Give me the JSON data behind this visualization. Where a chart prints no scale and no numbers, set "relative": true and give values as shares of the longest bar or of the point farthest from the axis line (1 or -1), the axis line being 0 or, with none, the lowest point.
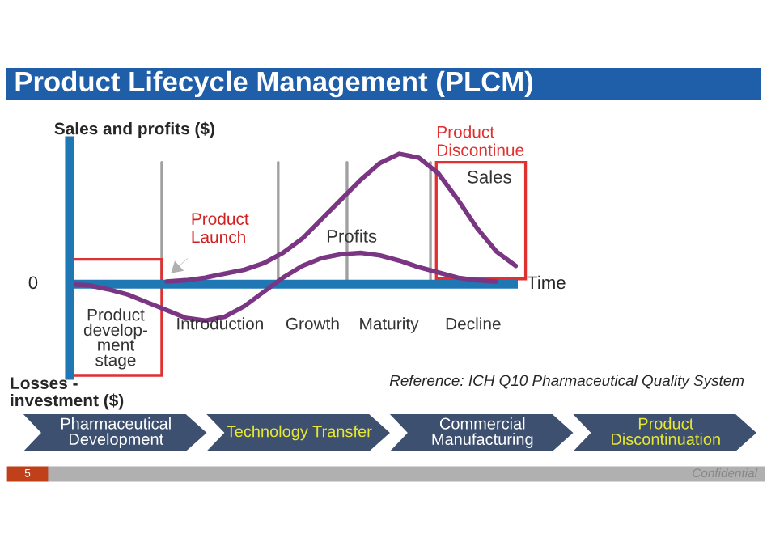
{
  "chart_data": {
    "type": "line",
    "relative": true,
    "title": "Product Lifecycle Management (PLCM)",
    "ylabel": "Sales and profits ($)",
    "xlabel": "Time",
    "categories": [
      null,
      null,
      null,
      null,
      null,
      null,
      null,
      null,
      null,
      null,
      null,
      null,
      null,
      null,
      null,
      null,
      null,
      null,
      null,
      null,
      null,
      null,
      null,
      null
    ],
    "series": [
      {
        "name": "Sales",
        "color": "#7a3583",
        "values": [
          null,
          null,
          null,
          null,
          null,
          0.02,
          0.03,
          0.05,
          0.08,
          0.11,
          0.16,
          0.24,
          0.35,
          0.5,
          0.65,
          0.8,
          0.93,
          1.0,
          0.97,
          0.85,
          0.65,
          0.43,
          0.25,
          0.14
        ]
      },
      {
        "name": "Profits",
        "color": "#7a3583",
        "values": [
          0,
          -0.01,
          -0.04,
          -0.08,
          -0.14,
          -0.2,
          -0.26,
          -0.28,
          -0.25,
          -0.17,
          -0.06,
          0.05,
          0.14,
          0.2,
          0.23,
          0.24,
          0.22,
          0.18,
          0.13,
          0.09,
          0.05,
          0.03,
          0.02,
          null
        ]
      }
    ],
    "annotations": [
      "0",
      "Losses -\ninvestment ($)",
      "Product\nLaunch",
      "Product\ndevelop-\nment\nstage",
      "Introduction",
      "Growth",
      "Maturity",
      "Decline",
      "Product\nDiscontinue",
      "Reference: ICH Q10 Pharmaceutical Quality System",
      "Pharmaceutical\nDevelopment",
      "Technology Transfer",
      "Commercial\nManufacturing",
      "Product\nDiscontinuation",
      "5",
      "Confidential"
    ],
    "ref_lines": [
      {
        "axis": "y",
        "value": 0,
        "color": "#1f77b4"
      }
    ],
    "legend": false,
    "grid": false
  }
}
